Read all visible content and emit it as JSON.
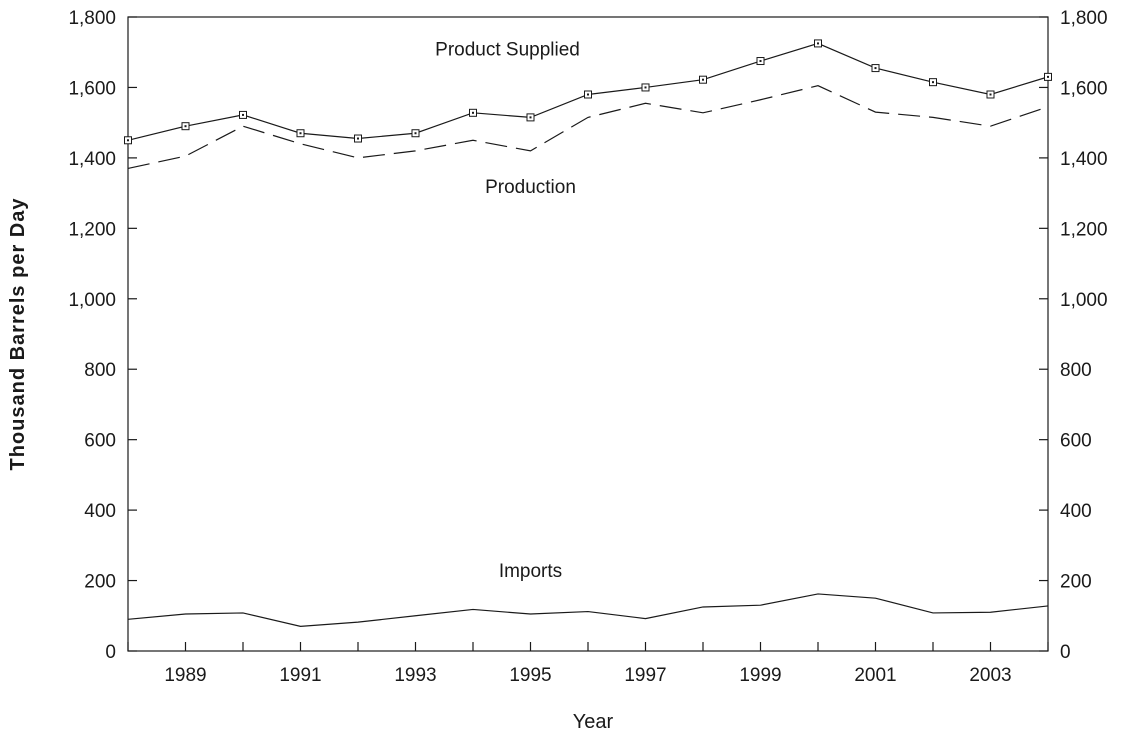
{
  "chart_data": {
    "type": "line",
    "title": "",
    "xlabel": "Year",
    "ylabel": "Thousand Barrels per Day",
    "x": [
      1988,
      1989,
      1990,
      1991,
      1992,
      1993,
      1994,
      1995,
      1996,
      1997,
      1998,
      1999,
      2000,
      2001,
      2002,
      2003,
      2004
    ],
    "xlim": [
      1988,
      2004
    ],
    "ylim": [
      0,
      1800
    ],
    "x_ticks": [
      1989,
      1991,
      1993,
      1995,
      1997,
      1999,
      2001,
      2003
    ],
    "y_ticks": [
      0,
      200,
      400,
      600,
      800,
      1000,
      1200,
      1400,
      1600,
      1800
    ],
    "y_tick_labels": [
      "0",
      "200",
      "400",
      "600",
      "800",
      "1,000",
      "1,200",
      "1,400",
      "1,600",
      "1,800"
    ],
    "y_axis_right": true,
    "grid": false,
    "legend": "none",
    "series": [
      {
        "name": "Product Supplied",
        "style": "solid-with-square-markers",
        "values": [
          1450,
          1490,
          1522,
          1470,
          1455,
          1470,
          1528,
          1515,
          1580,
          1600,
          1622,
          1675,
          1725,
          1655,
          1615,
          1580,
          1630
        ]
      },
      {
        "name": "Production",
        "style": "dashed",
        "values": [
          1370,
          1405,
          1490,
          1440,
          1400,
          1420,
          1450,
          1420,
          1515,
          1555,
          1528,
          1565,
          1605,
          1530,
          1515,
          1490,
          1545
        ]
      },
      {
        "name": "Imports",
        "style": "solid",
        "values": [
          90,
          105,
          108,
          70,
          82,
          100,
          118,
          105,
          112,
          92,
          125,
          130,
          162,
          150,
          108,
          110,
          128
        ]
      }
    ]
  }
}
